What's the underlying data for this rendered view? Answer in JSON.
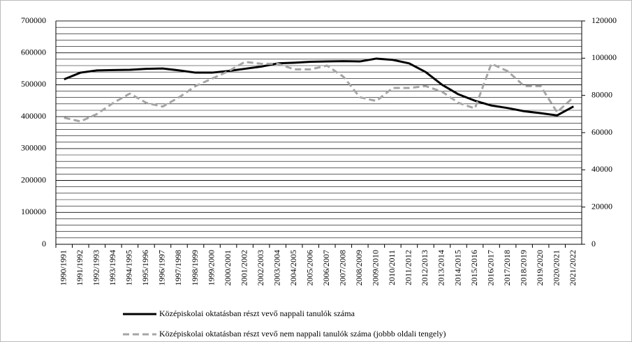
{
  "chart_data": {
    "type": "line",
    "categories": [
      "1990/1991",
      "1991/1992",
      "1992/1993",
      "1993/1994",
      "1994/1995",
      "1995/1996",
      "1996/1997",
      "1997/1998",
      "1998/1999",
      "1999/2000",
      "2000/2001",
      "2001/2002",
      "2002/2003",
      "2003/2004",
      "2004/2005",
      "2005/2006",
      "2006/2007",
      "2007/2008",
      "2008/2009",
      "2009/2010",
      "2010/2011",
      "2011/2012",
      "2012/2013",
      "2013/2014",
      "2014/2015",
      "2015/2016",
      "2016/2017",
      "2017/2018",
      "2018/2019",
      "2019/2020",
      "2020/2021",
      "2021/2022"
    ],
    "series": [
      {
        "name": "Középiskolai oktatásban részt vevő nappali tanulók száma",
        "color": "#000000",
        "dash": false,
        "values": [
          517000,
          538000,
          545000,
          546000,
          547000,
          550000,
          551000,
          545000,
          538000,
          538000,
          543000,
          550000,
          557000,
          567000,
          569000,
          572000,
          573000,
          574000,
          573000,
          582000,
          578000,
          567000,
          540000,
          500000,
          470000,
          450000,
          435000,
          427000,
          417000,
          411000,
          404000,
          432000
        ]
      },
      {
        "name": "Középiskolai oktatásban részt vevő nem nappali tanulók száma (jobbb oldali tengely)",
        "color": "#a6a6a6",
        "dash": true,
        "axis": "y2",
        "values": [
          68000,
          66000,
          70000,
          76000,
          81000,
          76000,
          74000,
          79000,
          85000,
          89000,
          93000,
          98000,
          97000,
          97000,
          94000,
          94000,
          96000,
          90000,
          79000,
          77000,
          84000,
          84000,
          85000,
          82000,
          76000,
          73000,
          97000,
          93000,
          85000,
          85000,
          71000,
          79000
        ]
      }
    ],
    "ylim": [
      0,
      700000
    ],
    "yticks": [
      0,
      100000,
      200000,
      300000,
      400000,
      500000,
      600000,
      700000
    ],
    "y2lim": [
      0,
      120000
    ],
    "y2ticks": [
      0,
      20000,
      40000,
      60000,
      80000,
      100000,
      120000
    ],
    "grid": true,
    "minor_grid": 20000,
    "legend": "bottom"
  }
}
